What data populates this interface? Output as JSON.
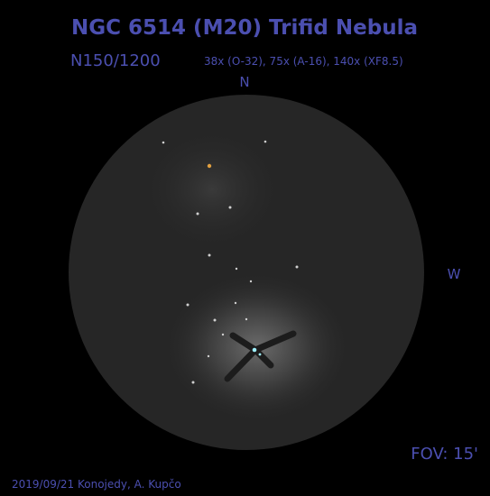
{
  "header": {
    "title": "NGC 6514 (M20)  Trifid Nebula",
    "telescope": "N150/1200",
    "magnifications": "38x (O-32), 75x (A-16), 140x (XF8.5)"
  },
  "orientation": {
    "north": "N",
    "west": "W"
  },
  "fov": "FOV: 15'",
  "credit": "2019/09/21 Konojedy, A. Kupčo"
}
